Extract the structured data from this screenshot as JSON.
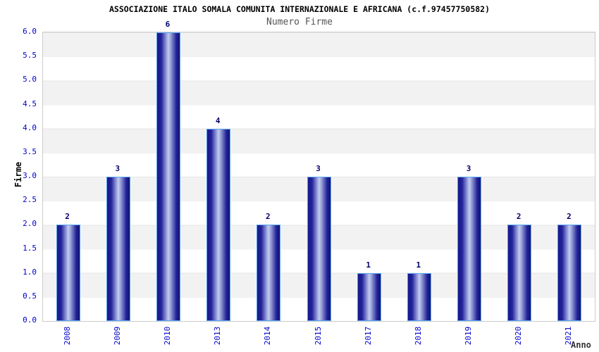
{
  "chart_data": {
    "type": "bar",
    "title": "ASSOCIAZIONE ITALO SOMALA COMUNITA INTERNAZIONALE E AFRICANA (c.f.97457750582)",
    "subtitle": "Numero Firme",
    "xlabel": "Anno",
    "ylabel": "Firme",
    "categories": [
      "2008",
      "2009",
      "2010",
      "2013",
      "2014",
      "2015",
      "2017",
      "2018",
      "2019",
      "2020",
      "2021"
    ],
    "values": [
      2,
      3,
      6,
      4,
      2,
      3,
      1,
      1,
      3,
      2,
      2
    ],
    "value_labels": [
      "2",
      "3",
      "6",
      "4",
      "2",
      "3",
      "1",
      "1",
      "3",
      "2",
      "2"
    ],
    "ylim": [
      0,
      6
    ],
    "ytick_step": 0.5,
    "yticks": [
      "0.0",
      "0.5",
      "1.0",
      "1.5",
      "2.0",
      "2.5",
      "3.0",
      "3.5",
      "4.0",
      "4.5",
      "5.0",
      "5.5",
      "6.0"
    ],
    "grid": "horizontal-bands",
    "legend": "none",
    "colors": {
      "bar_dark": "#191989",
      "bar_darkest": "#12126e",
      "bar_light": "#aab3e6",
      "bar_border": "#58a4f4",
      "tick_label": "#0000cd",
      "value_label": "#00006b",
      "band_gray": "#f2f2f2",
      "band_white": "#ffffff",
      "title": "#000000",
      "subtitle": "#555555"
    }
  }
}
